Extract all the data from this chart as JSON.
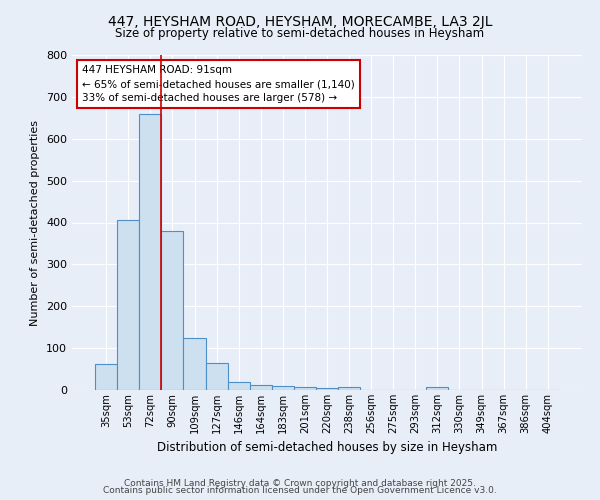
{
  "title": "447, HEYSHAM ROAD, HEYSHAM, MORECAMBE, LA3 2JL",
  "subtitle": "Size of property relative to semi-detached houses in Heysham",
  "xlabel": "Distribution of semi-detached houses by size in Heysham",
  "ylabel": "Number of semi-detached properties",
  "categories": [
    "35sqm",
    "53sqm",
    "72sqm",
    "90sqm",
    "109sqm",
    "127sqm",
    "146sqm",
    "164sqm",
    "183sqm",
    "201sqm",
    "220sqm",
    "238sqm",
    "256sqm",
    "275sqm",
    "293sqm",
    "312sqm",
    "330sqm",
    "349sqm",
    "367sqm",
    "386sqm",
    "404sqm"
  ],
  "values": [
    62,
    407,
    660,
    380,
    125,
    65,
    18,
    12,
    10,
    8,
    5,
    7,
    0,
    0,
    0,
    6,
    1,
    1,
    1,
    1,
    0
  ],
  "bar_color": "#cce0f0",
  "bar_edge_color": "#4d90c8",
  "background_color": "#e8eef8",
  "grid_color": "#ffffff",
  "red_line_x": 2.5,
  "annotation_title": "447 HEYSHAM ROAD: 91sqm",
  "annotation_line1": "← 65% of semi-detached houses are smaller (1,140)",
  "annotation_line2": "33% of semi-detached houses are larger (578) →",
  "annotation_box_color": "#ffffff",
  "annotation_box_edge": "#cc0000",
  "ylim": [
    0,
    800
  ],
  "yticks": [
    0,
    100,
    200,
    300,
    400,
    500,
    600,
    700,
    800
  ],
  "footer1": "Contains HM Land Registry data © Crown copyright and database right 2025.",
  "footer2": "Contains public sector information licensed under the Open Government Licence v3.0."
}
